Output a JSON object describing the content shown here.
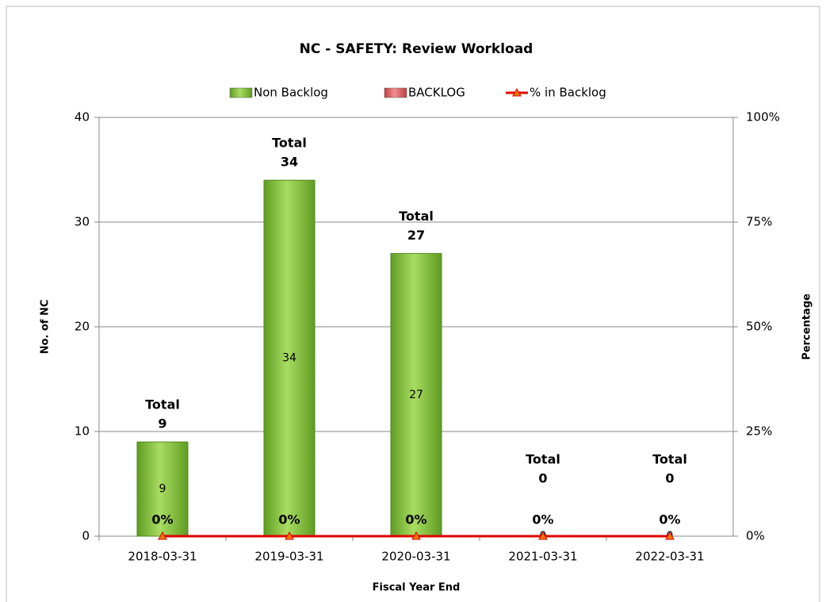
{
  "chart_data": {
    "type": "bar_line",
    "title": "NC - SAFETY: Review Workload",
    "x_label": "Fiscal Year End",
    "y_label": "No. of NC",
    "y2_label": "Percentage",
    "categories": [
      "2018-03-31",
      "2019-03-31",
      "2020-03-31",
      "2021-03-31",
      "2022-03-31"
    ],
    "series": [
      {
        "name": "Non Backlog",
        "type": "bar",
        "color": "#8cc63f",
        "values": [
          9,
          34,
          27,
          0,
          0
        ]
      },
      {
        "name": "BACKLOG",
        "type": "bar",
        "color": "#e06060",
        "values": [
          0,
          0,
          0,
          0,
          0
        ]
      },
      {
        "name": "% in Backlog",
        "type": "line",
        "axis": "y2",
        "color": "#e00000",
        "values": [
          0,
          0,
          0,
          0,
          0
        ],
        "value_labels": [
          "0%",
          "0%",
          "0%",
          "0%",
          "0%"
        ]
      }
    ],
    "total_label": "Total",
    "totals": [
      9,
      34,
      27,
      0,
      0
    ],
    "stacked": true,
    "ylim": [
      0,
      40
    ],
    "yticks": [
      0,
      10,
      20,
      30,
      40
    ],
    "y2lim": [
      0,
      100
    ],
    "y2ticks": [
      {
        "value": 0,
        "label": "0%"
      },
      {
        "value": 25,
        "label": "25%"
      },
      {
        "value": 50,
        "label": "50%"
      },
      {
        "value": 75,
        "label": "75%"
      },
      {
        "value": 100,
        "label": "100%"
      }
    ],
    "grid": true,
    "legend": "top"
  }
}
